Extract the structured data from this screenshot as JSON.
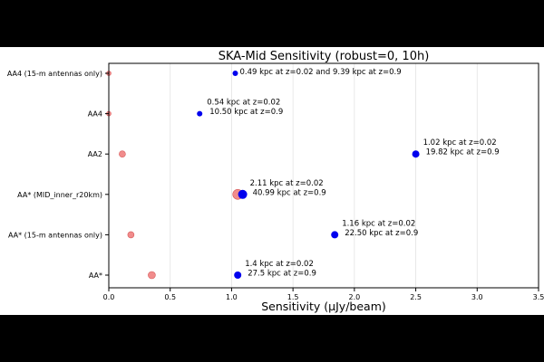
{
  "chart_data": {
    "type": "scatter",
    "title": "SKA-Mid Sensitivity (robust=0, 10h)",
    "xlabel": "Sensitivity (μJy/beam)",
    "ylabel": "",
    "xlim": [
      0,
      3.5
    ],
    "x_ticks": [
      0.0,
      0.5,
      1.0,
      1.5,
      2.0,
      2.5,
      3.0,
      3.5
    ],
    "x_tick_labels": [
      "0.0",
      "0.5",
      "1.0",
      "1.5",
      "2.0",
      "2.5",
      "3.0",
      "3.5"
    ],
    "grid": "vertical",
    "categories": [
      "AA4 (15-m antennas only)",
      "AA4",
      "AA2",
      "AA* (MID_inner_r20km)",
      "AA* (15-m antennas only)",
      "AA*"
    ],
    "series": [
      {
        "color": "#f08080",
        "values": [
          0.0,
          0.0,
          0.11,
          1.05,
          0.18,
          0.35
        ]
      },
      {
        "color": "#0000ee",
        "values": [
          1.03,
          0.74,
          2.5,
          1.09,
          1.84,
          1.05
        ]
      }
    ],
    "annotations": [
      {
        "category": "AA4 (15-m antennas only)",
        "text": "0.49 kpc at z=0.02 and 9.39 kpc at z=0.9"
      },
      {
        "category": "AA4",
        "text": "0.54 kpc at z=0.02\n10.50 kpc at z=0.9"
      },
      {
        "category": "AA2",
        "text": "1.02 kpc at z=0.02\n19.82 kpc at z=0.9"
      },
      {
        "category": "AA* (MID_inner_r20km)",
        "text": "2.11 kpc at z=0.02\n40.99 kpc at z=0.9"
      },
      {
        "category": "AA* (15-m antennas only)",
        "text": "1.16 kpc at z=0.02\n22.50 kpc at z=0.9"
      },
      {
        "category": "AA*",
        "text": "1.4 kpc at z=0.02\n27.5 kpc at z=0.9"
      }
    ]
  }
}
